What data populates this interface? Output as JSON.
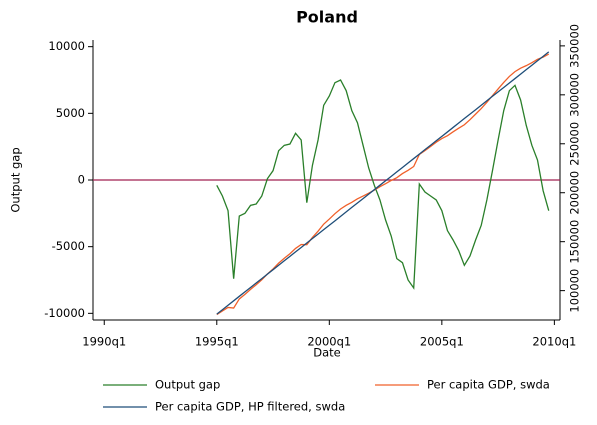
{
  "chart_data": {
    "type": "line",
    "title": "Poland",
    "xlabel": "Date",
    "ylabel": "Output gap",
    "x": [
      "1995q1",
      "1995q2",
      "1995q3",
      "1995q4",
      "1996q1",
      "1996q2",
      "1996q3",
      "1996q4",
      "1997q1",
      "1997q2",
      "1997q3",
      "1997q4",
      "1998q1",
      "1998q2",
      "1998q3",
      "1998q4",
      "1999q1",
      "1999q2",
      "1999q3",
      "1999q4",
      "2000q1",
      "2000q2",
      "2000q3",
      "2000q4",
      "2001q1",
      "2001q2",
      "2001q3",
      "2001q4",
      "2002q1",
      "2002q2",
      "2002q3",
      "2002q4",
      "2003q1",
      "2003q2",
      "2003q3",
      "2003q4",
      "2004q1",
      "2004q2",
      "2004q3",
      "2004q4",
      "2005q1",
      "2005q2",
      "2005q3",
      "2005q4",
      "2006q1",
      "2006q2",
      "2006q3",
      "2006q4",
      "2007q1",
      "2007q2",
      "2007q3",
      "2007q4",
      "2008q1",
      "2008q2",
      "2008q3",
      "2008q4",
      "2009q1",
      "2009q2",
      "2009q3",
      "2009q4"
    ],
    "series": [
      {
        "name": "Output gap",
        "color": "#2a7f2a",
        "values": [
          -400,
          -1200,
          -2300,
          -7400,
          -2700,
          -2500,
          -1900,
          -1800,
          -1200,
          100,
          700,
          2200,
          2600,
          2700,
          3500,
          3000,
          -1700,
          1100,
          3000,
          5600,
          6300,
          7300,
          7500,
          6700,
          5200,
          4300,
          2600,
          900,
          -400,
          -1500,
          -3000,
          -4200,
          -5900,
          -6200,
          -7500,
          -8100,
          -300,
          -900,
          -1200,
          -1500,
          -2300,
          -3800,
          -4500,
          -5300,
          -6400,
          -5700,
          -4500,
          -3400,
          -1500,
          700,
          3000,
          5200,
          6700,
          7100,
          6000,
          4100,
          2600,
          1500,
          -800,
          -2300
        ]
      },
      {
        "name": "Per capita GDP, swda",
        "color": "#f0602a",
        "axis": "y2",
        "values": [
          75600,
          79300,
          82800,
          82200,
          91500,
          96200,
          101300,
          106000,
          111100,
          117000,
          122100,
          128100,
          133100,
          137700,
          143100,
          147100,
          146900,
          154300,
          160700,
          167900,
          173100,
          178600,
          183400,
          187100,
          190200,
          193800,
          196600,
          199500,
          202700,
          206200,
          209200,
          212500,
          215400,
          219600,
          222900,
          226800,
          239100,
          243100,
          247300,
          251600,
          255300,
          258300,
          262200,
          265900,
          269400,
          274600,
          280300,
          286000,
          292400,
          299200,
          306000,
          312700,
          318800,
          323700,
          327200,
          329800,
          332800,
          336300,
          338500,
          341600
        ]
      },
      {
        "name": "Per capita GDP, HP filtered, swda",
        "color": "#1f4e79",
        "axis": "y2",
        "values": [
          76000,
          80500,
          85100,
          89600,
          94200,
          98700,
          103200,
          107800,
          112300,
          116900,
          121400,
          125900,
          130500,
          135000,
          139600,
          144100,
          148600,
          153200,
          157700,
          162300,
          166800,
          171300,
          175900,
          180400,
          185000,
          189500,
          194000,
          198600,
          203100,
          207700,
          212200,
          216700,
          221300,
          225800,
          230400,
          234900,
          239400,
          244000,
          248500,
          253100,
          257600,
          262100,
          266700,
          271200,
          275800,
          280300,
          284800,
          289400,
          293900,
          298500,
          303000,
          307500,
          312100,
          316600,
          321200,
          325700,
          330200,
          334800,
          339300,
          343900
        ]
      }
    ],
    "xlim": [
      "1989q3",
      "2010q2"
    ],
    "xticks": [
      "1990q1",
      "1995q1",
      "2000q1",
      "2005q1",
      "2010q1"
    ],
    "ylim": [
      -10500,
      10500
    ],
    "yticks": [
      -10000,
      -5000,
      0,
      5000,
      10000
    ],
    "y2lim": [
      70000,
      356000
    ],
    "y2ticks": [
      100000,
      150000,
      200000,
      250000,
      300000,
      350000
    ],
    "hline": 0,
    "hline_color": "#a02050",
    "grid": false,
    "legend": "bottom"
  }
}
